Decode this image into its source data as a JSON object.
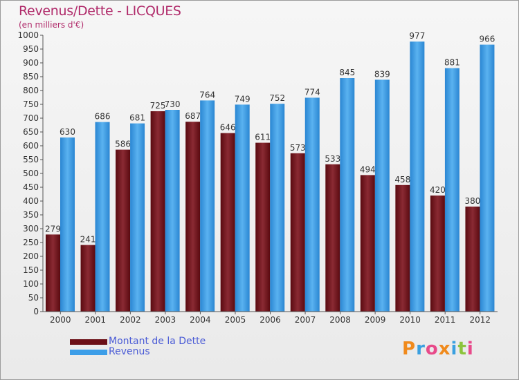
{
  "title": "Revenus/Dette - LICQUES",
  "subtitle": "(en milliers d'€)",
  "legend": [
    {
      "label": "Montant de la Dette",
      "color": "#6b0f16"
    },
    {
      "label": "Revenus",
      "color": "#3d9ee8"
    }
  ],
  "logo": "Proxiti",
  "chart_data": {
    "type": "bar",
    "categories": [
      "2000",
      "2001",
      "2002",
      "2003",
      "2004",
      "2005",
      "2006",
      "2007",
      "2008",
      "2009",
      "2010",
      "2011",
      "2012"
    ],
    "series": [
      {
        "name": "Montant de la Dette",
        "color": "#6b0f16",
        "values": [
          279,
          241,
          586,
          725,
          687,
          646,
          611,
          573,
          533,
          494,
          458,
          420,
          380
        ]
      },
      {
        "name": "Revenus",
        "color": "#3d9ee8",
        "values": [
          630,
          686,
          681,
          730,
          764,
          749,
          752,
          774,
          845,
          839,
          977,
          881,
          966
        ]
      }
    ],
    "ylim": [
      0,
      1000
    ],
    "ytick_step": 50,
    "grid": false,
    "legend_position": "bottom-left"
  }
}
